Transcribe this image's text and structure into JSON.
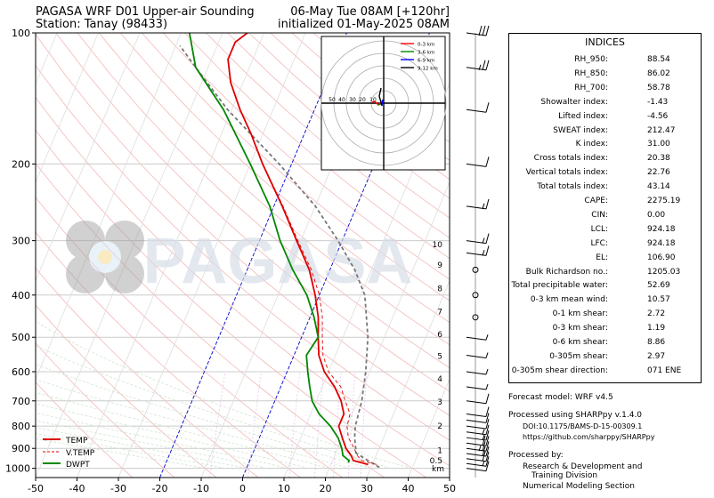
{
  "header": {
    "title_left": "PAGASA WRF D01 Upper-air Sounding",
    "station": "Station: Tanay (98433)",
    "valid_time": "06-May Tue 08AM [+120hr]",
    "init_time": "initialized 01-May-2025 08AM"
  },
  "watermark": "PAGASA",
  "indices": {
    "heading": "INDICES",
    "rows": [
      {
        "label": "RH_950:",
        "value": "88.54"
      },
      {
        "label": "RH_850:",
        "value": "86.02"
      },
      {
        "label": "RH_700:",
        "value": "58.78"
      },
      {
        "label": "Showalter index:",
        "value": "-1.43"
      },
      {
        "label": "Lifted index:",
        "value": "-4.56"
      },
      {
        "label": "SWEAT index:",
        "value": "212.47"
      },
      {
        "label": "K index:",
        "value": "31.00"
      },
      {
        "label": "Cross totals index:",
        "value": "20.38"
      },
      {
        "label": "Vertical totals index:",
        "value": "22.76"
      },
      {
        "label": "Total totals index:",
        "value": "43.14"
      },
      {
        "label": "CAPE:",
        "value": "2275.19"
      },
      {
        "label": "CIN:",
        "value": "0.00"
      },
      {
        "label": "LCL:",
        "value": "924.18"
      },
      {
        "label": "LFC:",
        "value": "924.18"
      },
      {
        "label": "EL:",
        "value": "106.90"
      },
      {
        "label": "Bulk Richardson no.:",
        "value": "1205.03"
      },
      {
        "label": "Total precipitable water:",
        "value": "52.69"
      },
      {
        "label": "0-3 km mean wind:",
        "value": "10.57"
      },
      {
        "label": "0-1 km shear:",
        "value": "2.72"
      },
      {
        "label": "0-3 km shear:",
        "value": "1.19"
      },
      {
        "label": "0-6 km shear:",
        "value": "8.86"
      },
      {
        "label": "0-305m shear:",
        "value": "2.97"
      },
      {
        "label": "0-305m shear direction:",
        "value": "071 ENE"
      }
    ]
  },
  "footer": {
    "model": "Forecast model: WRF v4.5",
    "processed": "Processed using SHARPpy v.1.4.0",
    "doi": "DOI:10.1175/BAMS-D-15-00309.1",
    "url": "https://github.com/sharppy/SHARPpy",
    "processed_by": "Processed by:",
    "org1": "Research & Development and",
    "org2": "Training Division",
    "org3": "Numerical Modeling Section"
  },
  "colors": {
    "temp": "#dd0000",
    "vtemp": "#dd0000",
    "dwpt": "#008800",
    "parcel": "#777777",
    "hodo_0_3": "#ff0000",
    "hodo_3_6": "#008800",
    "hodo_6_9": "#0000ff",
    "hodo_9_12": "#000000"
  },
  "hodograph": {
    "legend": [
      "0-3 km",
      "3-6 km",
      "6-9 km",
      "9-12 km"
    ],
    "ring_labels": [
      "50",
      "40",
      "30",
      "20",
      "10"
    ]
  },
  "chart_data": {
    "type": "line",
    "title": "",
    "xlabel": "",
    "ylabel": "",
    "xlim": [
      -50,
      50
    ],
    "ylim": [
      1050,
      100
    ],
    "y_scale": "log",
    "x_ticks": [
      -50,
      -40,
      -30,
      -20,
      -10,
      0,
      10,
      20,
      30,
      40,
      50
    ],
    "y_ticks": [
      100,
      200,
      300,
      400,
      500,
      600,
      700,
      800,
      900,
      1000
    ],
    "legend_position": "lower-left",
    "height_labels": {
      "km": [
        "10",
        "9",
        "8",
        "7",
        "6",
        "5",
        "4",
        "3",
        "2",
        "1",
        "0.5"
      ],
      "pressure": [
        305,
        340,
        385,
        435,
        490,
        550,
        620,
        700,
        795,
        905,
        955
      ],
      "unit": "km"
    },
    "series": [
      {
        "name": "TEMP",
        "style": "solid",
        "pressure": [
          980,
          960,
          935,
          900,
          850,
          800,
          750,
          700,
          650,
          600,
          550,
          500,
          450,
          400,
          350,
          300,
          250,
          200,
          170,
          150,
          130,
          115,
          105,
          100
        ],
        "temperature": [
          29,
          25,
          24,
          22,
          20,
          18,
          18,
          16,
          13,
          9,
          6,
          4,
          2,
          -1,
          -5,
          -11,
          -18,
          -27,
          -33,
          -38,
          -43,
          -46,
          -46,
          -44
        ]
      },
      {
        "name": "V.TEMP",
        "style": "dashed",
        "pressure": [
          980,
          960,
          935,
          900,
          850,
          800,
          750,
          700,
          650,
          600,
          550,
          500,
          450,
          400,
          350,
          300,
          250,
          200,
          170,
          150,
          130,
          115,
          105,
          100
        ],
        "temperature": [
          31,
          27,
          25.5,
          24,
          21.5,
          20,
          19.5,
          17,
          14.5,
          10,
          7,
          5,
          3,
          0,
          -4.5,
          -10.7,
          -17.8,
          -27,
          -33,
          -38,
          -43,
          -46,
          -46,
          -44
        ]
      },
      {
        "name": "DWPT",
        "style": "solid",
        "pressure": [
          970,
          960,
          935,
          900,
          850,
          800,
          750,
          700,
          650,
          600,
          550,
          500,
          450,
          400,
          350,
          300,
          250,
          200,
          150,
          120,
          100
        ],
        "temperature": [
          24,
          24,
          22,
          21,
          19,
          16,
          12,
          9,
          7,
          5,
          3,
          4,
          1,
          -3,
          -9,
          -15,
          -21,
          -30,
          -42,
          -53,
          -58
        ]
      }
    ],
    "parcel": {
      "name": "parcel",
      "style": "dashed",
      "pressure": [
        995,
        924,
        850,
        800,
        700,
        600,
        500,
        400,
        350,
        300,
        250,
        200,
        150,
        120,
        107
      ],
      "temperature": [
        32,
        25,
        23,
        22,
        21,
        19,
        16,
        11,
        6,
        -1,
        -10,
        -23,
        -41,
        -53,
        -59
      ]
    },
    "wind_barbs": {
      "pressure": [
        1000,
        975,
        950,
        925,
        900,
        875,
        850,
        825,
        800,
        775,
        750,
        700,
        650,
        600,
        550,
        500,
        450,
        400,
        350,
        320,
        300,
        250,
        200,
        150,
        120,
        100
      ],
      "speed_kt": [
        10,
        15,
        20,
        20,
        25,
        20,
        15,
        15,
        10,
        10,
        10,
        10,
        5,
        5,
        5,
        5,
        0,
        0,
        0,
        15,
        15,
        15,
        10,
        10,
        25,
        30
      ]
    }
  }
}
